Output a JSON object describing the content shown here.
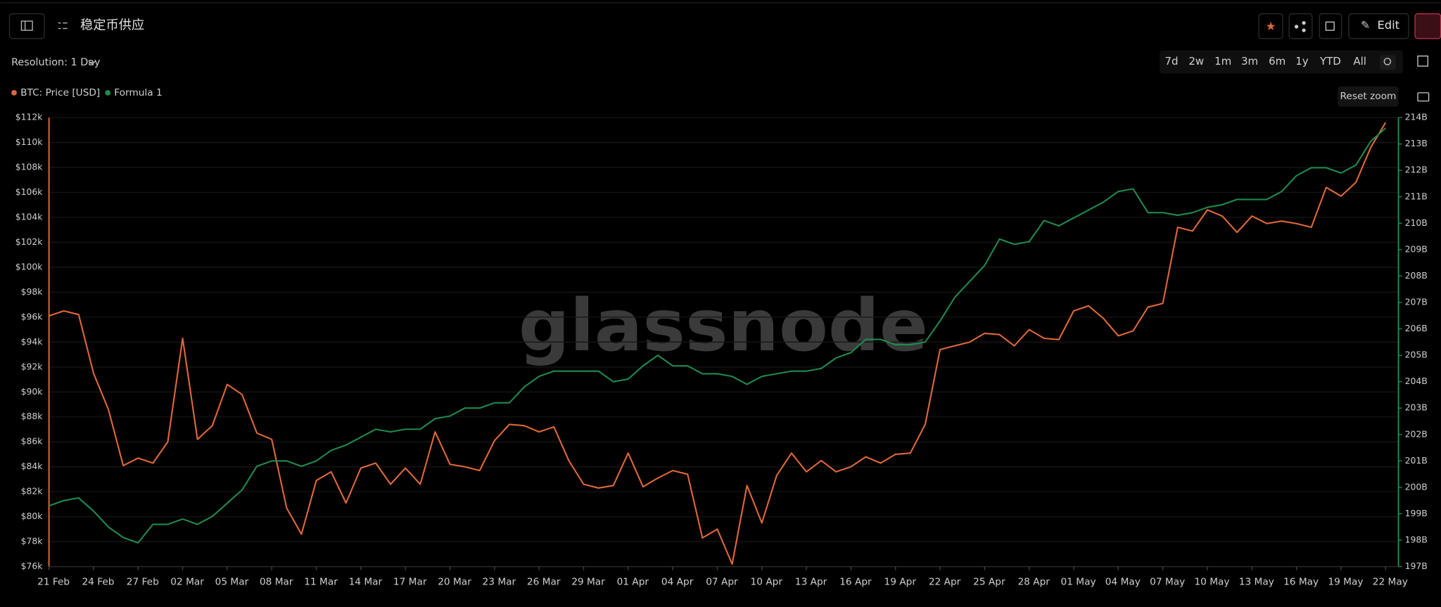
{
  "header": {
    "title": "稳定币供应",
    "edit": "Edit"
  },
  "toolbar": {
    "resolution": "Resolution: 1 Day",
    "ranges": [
      "7d",
      "2w",
      "1m",
      "3m",
      "6m",
      "1y",
      "YTD",
      "All"
    ],
    "reset_zoom": "Reset zoom"
  },
  "watermark": "glassnode",
  "chart_data": {
    "type": "line",
    "grid": true,
    "categories": [
      "21 Feb",
      null,
      null,
      "24 Feb",
      null,
      null,
      "27 Feb",
      null,
      null,
      "02 Mar",
      null,
      null,
      "05 Mar",
      null,
      null,
      "08 Mar",
      null,
      null,
      "11 Mar",
      null,
      null,
      "14 Mar",
      null,
      null,
      "17 Mar",
      null,
      null,
      "20 Mar",
      null,
      null,
      "23 Mar",
      null,
      null,
      "26 Mar",
      null,
      null,
      "29 Mar",
      null,
      null,
      "01 Apr",
      null,
      null,
      "04 Apr",
      null,
      null,
      "07 Apr",
      null,
      null,
      "10 Apr",
      null,
      null,
      "13 Apr",
      null,
      null,
      "16 Apr",
      null,
      null,
      "19 Apr",
      null,
      null,
      "22 Apr",
      null,
      null,
      "25 Apr",
      null,
      null,
      "28 Apr",
      null,
      null,
      "01 May",
      null,
      null,
      "04 May",
      null,
      null,
      "07 May",
      null,
      null,
      "10 May",
      null,
      null,
      "13 May",
      null,
      null,
      "16 May",
      null,
      null,
      "19 May",
      null,
      null,
      "22 May"
    ],
    "ylim": [
      76000,
      112000
    ],
    "yticks": [
      {
        "value": 76000,
        "label": "$76k"
      },
      {
        "value": 78000,
        "label": "$78k"
      },
      {
        "value": 80000,
        "label": "$80k"
      },
      {
        "value": 82000,
        "label": "$82k"
      },
      {
        "value": 84000,
        "label": "$84k"
      },
      {
        "value": 86000,
        "label": "$86k"
      },
      {
        "value": 88000,
        "label": "$88k"
      },
      {
        "value": 90000,
        "label": "$90k"
      },
      {
        "value": 92000,
        "label": "$92k"
      },
      {
        "value": 94000,
        "label": "$94k"
      },
      {
        "value": 96000,
        "label": "$96k"
      },
      {
        "value": 98000,
        "label": "$98k"
      },
      {
        "value": 100000,
        "label": "$100k"
      },
      {
        "value": 102000,
        "label": "$102k"
      },
      {
        "value": 104000,
        "label": "$104k"
      },
      {
        "value": 106000,
        "label": "$106k"
      },
      {
        "value": 108000,
        "label": "$108k"
      },
      {
        "value": 110000,
        "label": "$110k"
      },
      {
        "value": 112000,
        "label": "$112k"
      }
    ],
    "y2lim": [
      197000000000,
      214000000000
    ],
    "y2ticks": [
      {
        "value": 197000000000,
        "label": "197B"
      },
      {
        "value": 198000000000,
        "label": "198B"
      },
      {
        "value": 199000000000,
        "label": "199B"
      },
      {
        "value": 200000000000,
        "label": "200B"
      },
      {
        "value": 201000000000,
        "label": "201B"
      },
      {
        "value": 202000000000,
        "label": "202B"
      },
      {
        "value": 203000000000,
        "label": "203B"
      },
      {
        "value": 204000000000,
        "label": "204B"
      },
      {
        "value": 205000000000,
        "label": "205B"
      },
      {
        "value": 206000000000,
        "label": "206B"
      },
      {
        "value": 207000000000,
        "label": "207B"
      },
      {
        "value": 208000000000,
        "label": "208B"
      },
      {
        "value": 209000000000,
        "label": "209B"
      },
      {
        "value": 210000000000,
        "label": "210B"
      },
      {
        "value": 211000000000,
        "label": "211B"
      },
      {
        "value": 212000000000,
        "label": "212B"
      },
      {
        "value": 213000000000,
        "label": "213B"
      },
      {
        "value": 214000000000,
        "label": "214B"
      }
    ],
    "series": [
      {
        "name": "BTC: Price [USD]",
        "color": "#e0673a",
        "values": [
          96100,
          96500,
          96200,
          91500,
          88600,
          84100,
          84700,
          84300,
          86000,
          94300,
          86200,
          87300,
          90600,
          89800,
          86700,
          86200,
          80700,
          78600,
          82900,
          83600,
          81100,
          83900,
          84300,
          82600,
          83900,
          82600,
          86800,
          84200,
          84000,
          83700,
          86100,
          87400,
          87300,
          86800,
          87200,
          84500,
          82600,
          82300,
          82500,
          85100,
          82400,
          83100,
          83700,
          83400,
          78300,
          79000,
          76200,
          82500,
          79500,
          83300,
          85100,
          83600,
          84500,
          83600,
          84000,
          84800,
          84300,
          85000,
          85100,
          87400,
          93400,
          93700,
          94000,
          94700,
          94600,
          93700,
          95000,
          94300,
          94200,
          96500,
          96900,
          95900,
          94500,
          94900,
          96800,
          97100,
          103200,
          102900,
          104600,
          104100,
          102800,
          104100,
          103500,
          103700,
          103500,
          103200,
          106400,
          105700,
          106800,
          109600,
          111600
        ]
      },
      {
        "name": "Formula 1",
        "color": "#1f8a4c",
        "axis": "y2",
        "values": [
          199300000000,
          199500000000,
          199600000000,
          199100000000,
          198500000000,
          198100000000,
          197900000000,
          198600000000,
          198600000000,
          198800000000,
          198600000000,
          198900000000,
          199400000000,
          199900000000,
          200800000000,
          201000000000,
          201000000000,
          200800000000,
          201000000000,
          201400000000,
          201600000000,
          201900000000,
          202200000000,
          202100000000,
          202200000000,
          202200000000,
          202600000000,
          202700000000,
          203000000000,
          203000000000,
          203200000000,
          203200000000,
          203800000000,
          204200000000,
          204400000000,
          204400000000,
          204400000000,
          204400000000,
          204000000000,
          204100000000,
          204600000000,
          205000000000,
          204600000000,
          204600000000,
          204300000000,
          204300000000,
          204200000000,
          203900000000,
          204200000000,
          204300000000,
          204400000000,
          204400000000,
          204500000000,
          204900000000,
          205100000000,
          205600000000,
          205600000000,
          205400000000,
          205400000000,
          205500000000,
          206300000000,
          207200000000,
          207800000000,
          208400000000,
          209400000000,
          209200000000,
          209300000000,
          210100000000,
          209900000000,
          210200000000,
          210500000000,
          210800000000,
          211200000000,
          211300000000,
          210400000000,
          210400000000,
          210300000000,
          210400000000,
          210600000000,
          210700000000,
          210900000000,
          210900000000,
          210900000000,
          211200000000,
          211800000000,
          212100000000,
          212100000000,
          211900000000,
          212200000000,
          213100000000,
          213600000000
        ]
      }
    ]
  }
}
